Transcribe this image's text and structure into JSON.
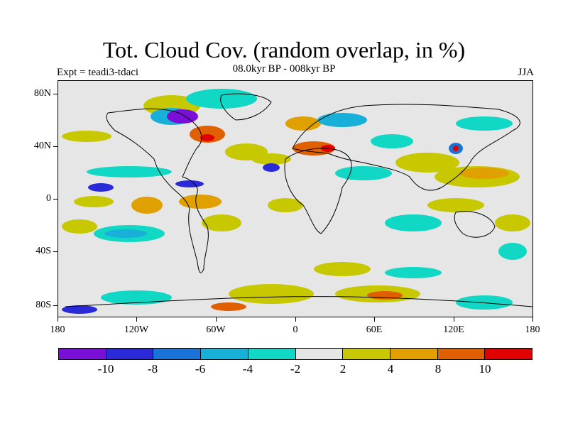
{
  "title": "Tot. Cloud Cov. (random overlap, in %)",
  "subtitle": "08.0kyr BP - 008kyr BP",
  "experiment": "Expt = teadi3-tdaci",
  "season": "JJA",
  "map": {
    "lat_labels": [
      "80N",
      "40N",
      "0",
      "40S",
      "80S"
    ],
    "lon_labels": [
      "180",
      "120W",
      "60W",
      "0",
      "60E",
      "120E",
      "180"
    ],
    "background_color": "#e6e6e6"
  },
  "colorbar": {
    "colors": [
      "#7a10d8",
      "#2a2ad8",
      "#1a74d8",
      "#18b0d8",
      "#10d8c4",
      "#e6e6e6",
      "#c8c800",
      "#e0a000",
      "#e06000",
      "#e00000"
    ],
    "labels": [
      "-10",
      "-8",
      "-6",
      "-4",
      "-2",
      "2",
      "4",
      "8",
      "10"
    ]
  }
}
